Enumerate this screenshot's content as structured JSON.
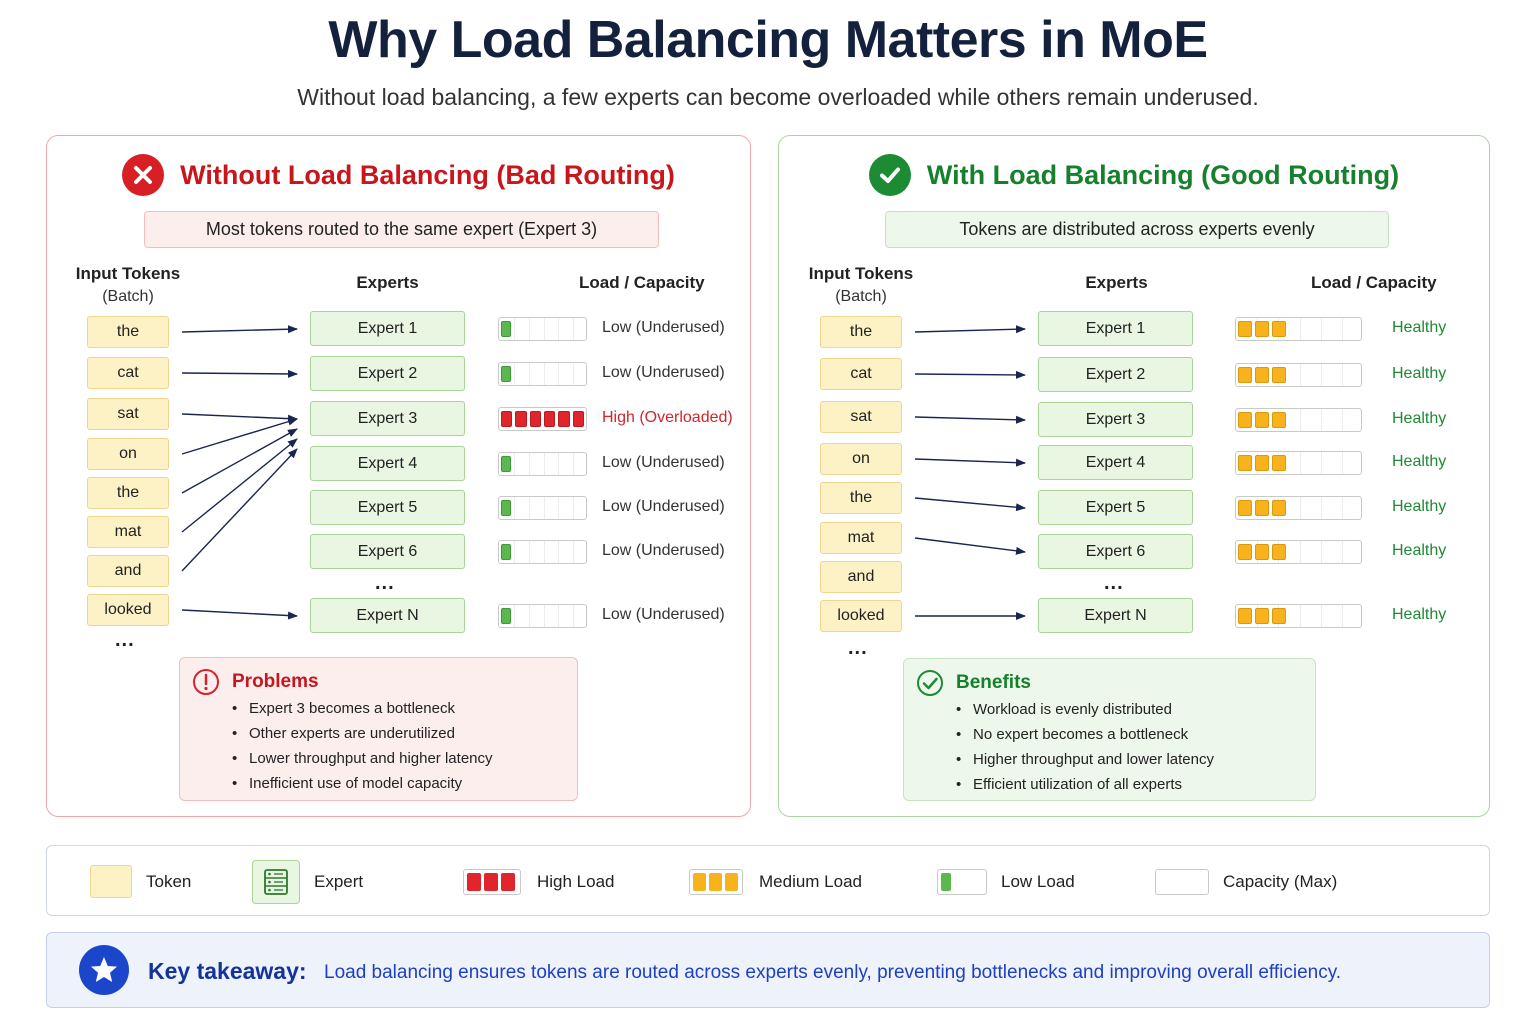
{
  "title": "Why Load Balancing Matters in MoE",
  "subtitle": "Without load balancing, a few experts can become overloaded while others remain underused.",
  "bad": {
    "title": "Without Load Balancing (Bad Routing)",
    "summary": "Most tokens routed to the same expert (Expert 3)",
    "col_tokens": "Input Tokens",
    "col_tokens_sub": "(Batch)",
    "col_experts": "Experts",
    "col_load": "Load / Capacity",
    "tokens": [
      "the",
      "cat",
      "sat",
      "on",
      "the",
      "mat",
      "and",
      "looked"
    ],
    "token_ellipsis": "...",
    "experts": [
      "Expert 1",
      "Expert 2",
      "Expert 3",
      "Expert 4",
      "Expert 5",
      "Expert 6",
      "Expert N"
    ],
    "expert_ellipsis": "...",
    "loads": [
      {
        "level": "low",
        "status": "Low (Underused)"
      },
      {
        "level": "low",
        "status": "Low (Underused)"
      },
      {
        "level": "high",
        "status": "High (Overloaded)"
      },
      {
        "level": "low",
        "status": "Low (Underused)"
      },
      {
        "level": "low",
        "status": "Low (Underused)"
      },
      {
        "level": "low",
        "status": "Low (Underused)"
      },
      {
        "level": "low",
        "status": "Low (Underused)"
      }
    ],
    "note_title": "Problems",
    "note_items": [
      "Expert 3 becomes a bottleneck",
      "Other experts are underutilized",
      "Lower throughput and higher latency",
      "Inefficient use of model capacity"
    ]
  },
  "good": {
    "title": "With Load Balancing (Good Routing)",
    "summary": "Tokens are distributed across experts evenly",
    "col_tokens": "Input Tokens",
    "col_tokens_sub": "(Batch)",
    "col_experts": "Experts",
    "col_load": "Load / Capacity",
    "tokens": [
      "the",
      "cat",
      "sat",
      "on",
      "the",
      "mat",
      "and",
      "looked"
    ],
    "token_ellipsis": "...",
    "experts": [
      "Expert 1",
      "Expert 2",
      "Expert 3",
      "Expert 4",
      "Expert 5",
      "Expert 6",
      "Expert N"
    ],
    "expert_ellipsis": "...",
    "loads": [
      {
        "level": "medium",
        "status": "Healthy"
      },
      {
        "level": "medium",
        "status": "Healthy"
      },
      {
        "level": "medium",
        "status": "Healthy"
      },
      {
        "level": "medium",
        "status": "Healthy"
      },
      {
        "level": "medium",
        "status": "Healthy"
      },
      {
        "level": "medium",
        "status": "Healthy"
      },
      {
        "level": "medium",
        "status": "Healthy"
      }
    ],
    "note_title": "Benefits",
    "note_items": [
      "Workload is evenly distributed",
      "No expert becomes a bottleneck",
      "Higher throughput and lower latency",
      "Efficient utilization of all experts"
    ]
  },
  "legend": {
    "token": "Token",
    "expert": "Expert",
    "high": "High Load",
    "medium": "Medium Load",
    "low": "Low Load",
    "capacity": "Capacity (Max)"
  },
  "takeaway": {
    "label": "Key takeaway:",
    "text": "Load balancing ensures tokens are routed across experts evenly,  preventing bottlenecks and improving overall efficiency."
  },
  "colors": {
    "high": "#e0262c",
    "medium": "#f7b21c",
    "low": "#5bb84f",
    "bad_accent": "#c8161d",
    "good_accent": "#17802d",
    "title": "#14213d",
    "takeaway": "#1d3fc4"
  },
  "icons": {
    "bad_header": "x-circle-icon",
    "good_header": "check-circle-icon",
    "problems": "exclamation-circle-icon",
    "benefits": "check-circle-outline-icon",
    "expert_legend": "server-icon",
    "takeaway": "star-icon"
  }
}
